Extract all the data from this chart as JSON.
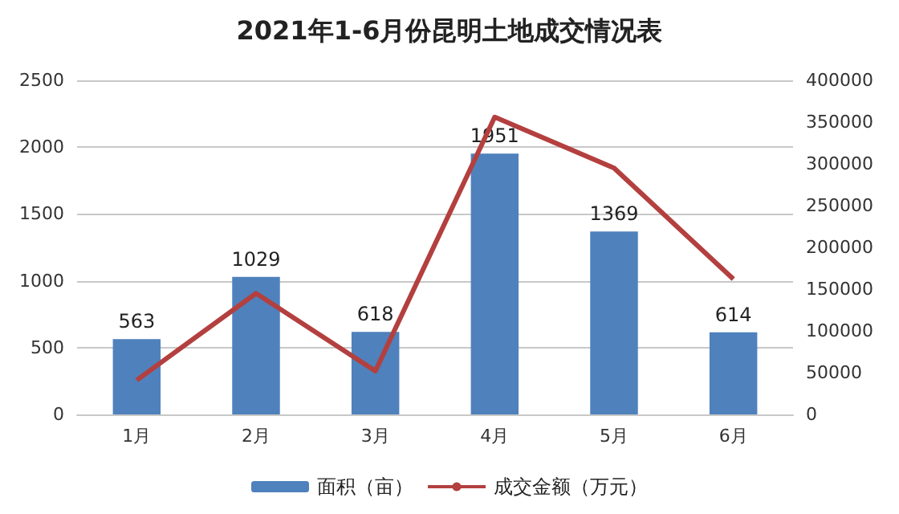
{
  "chart_data": {
    "type": "bar",
    "title": "2021年1-6月份昆明土地成交情况表",
    "categories": [
      "1月",
      "2月",
      "3月",
      "4月",
      "5月",
      "6月"
    ],
    "series": [
      {
        "name": "面积（亩）",
        "color": "#4f81bd",
        "values": [
          563,
          1029,
          618,
          1951,
          1369,
          614
        ],
        "data_labels": true
      },
      {
        "name": "成交金额（万元）",
        "type": "line",
        "axis": "y2",
        "color": "#b3403f",
        "values": [
          41000,
          145000,
          52000,
          356000,
          295000,
          162000
        ],
        "marker": "none"
      }
    ],
    "ylim": [
      0,
      2500
    ],
    "yticks": [
      0,
      500,
      1000,
      1500,
      2000,
      2500
    ],
    "y2lim": [
      0,
      400000
    ],
    "y2ticks": [
      0,
      50000,
      100000,
      150000,
      200000,
      250000,
      300000,
      350000,
      400000
    ],
    "grid": "y",
    "legend": "bottom"
  }
}
